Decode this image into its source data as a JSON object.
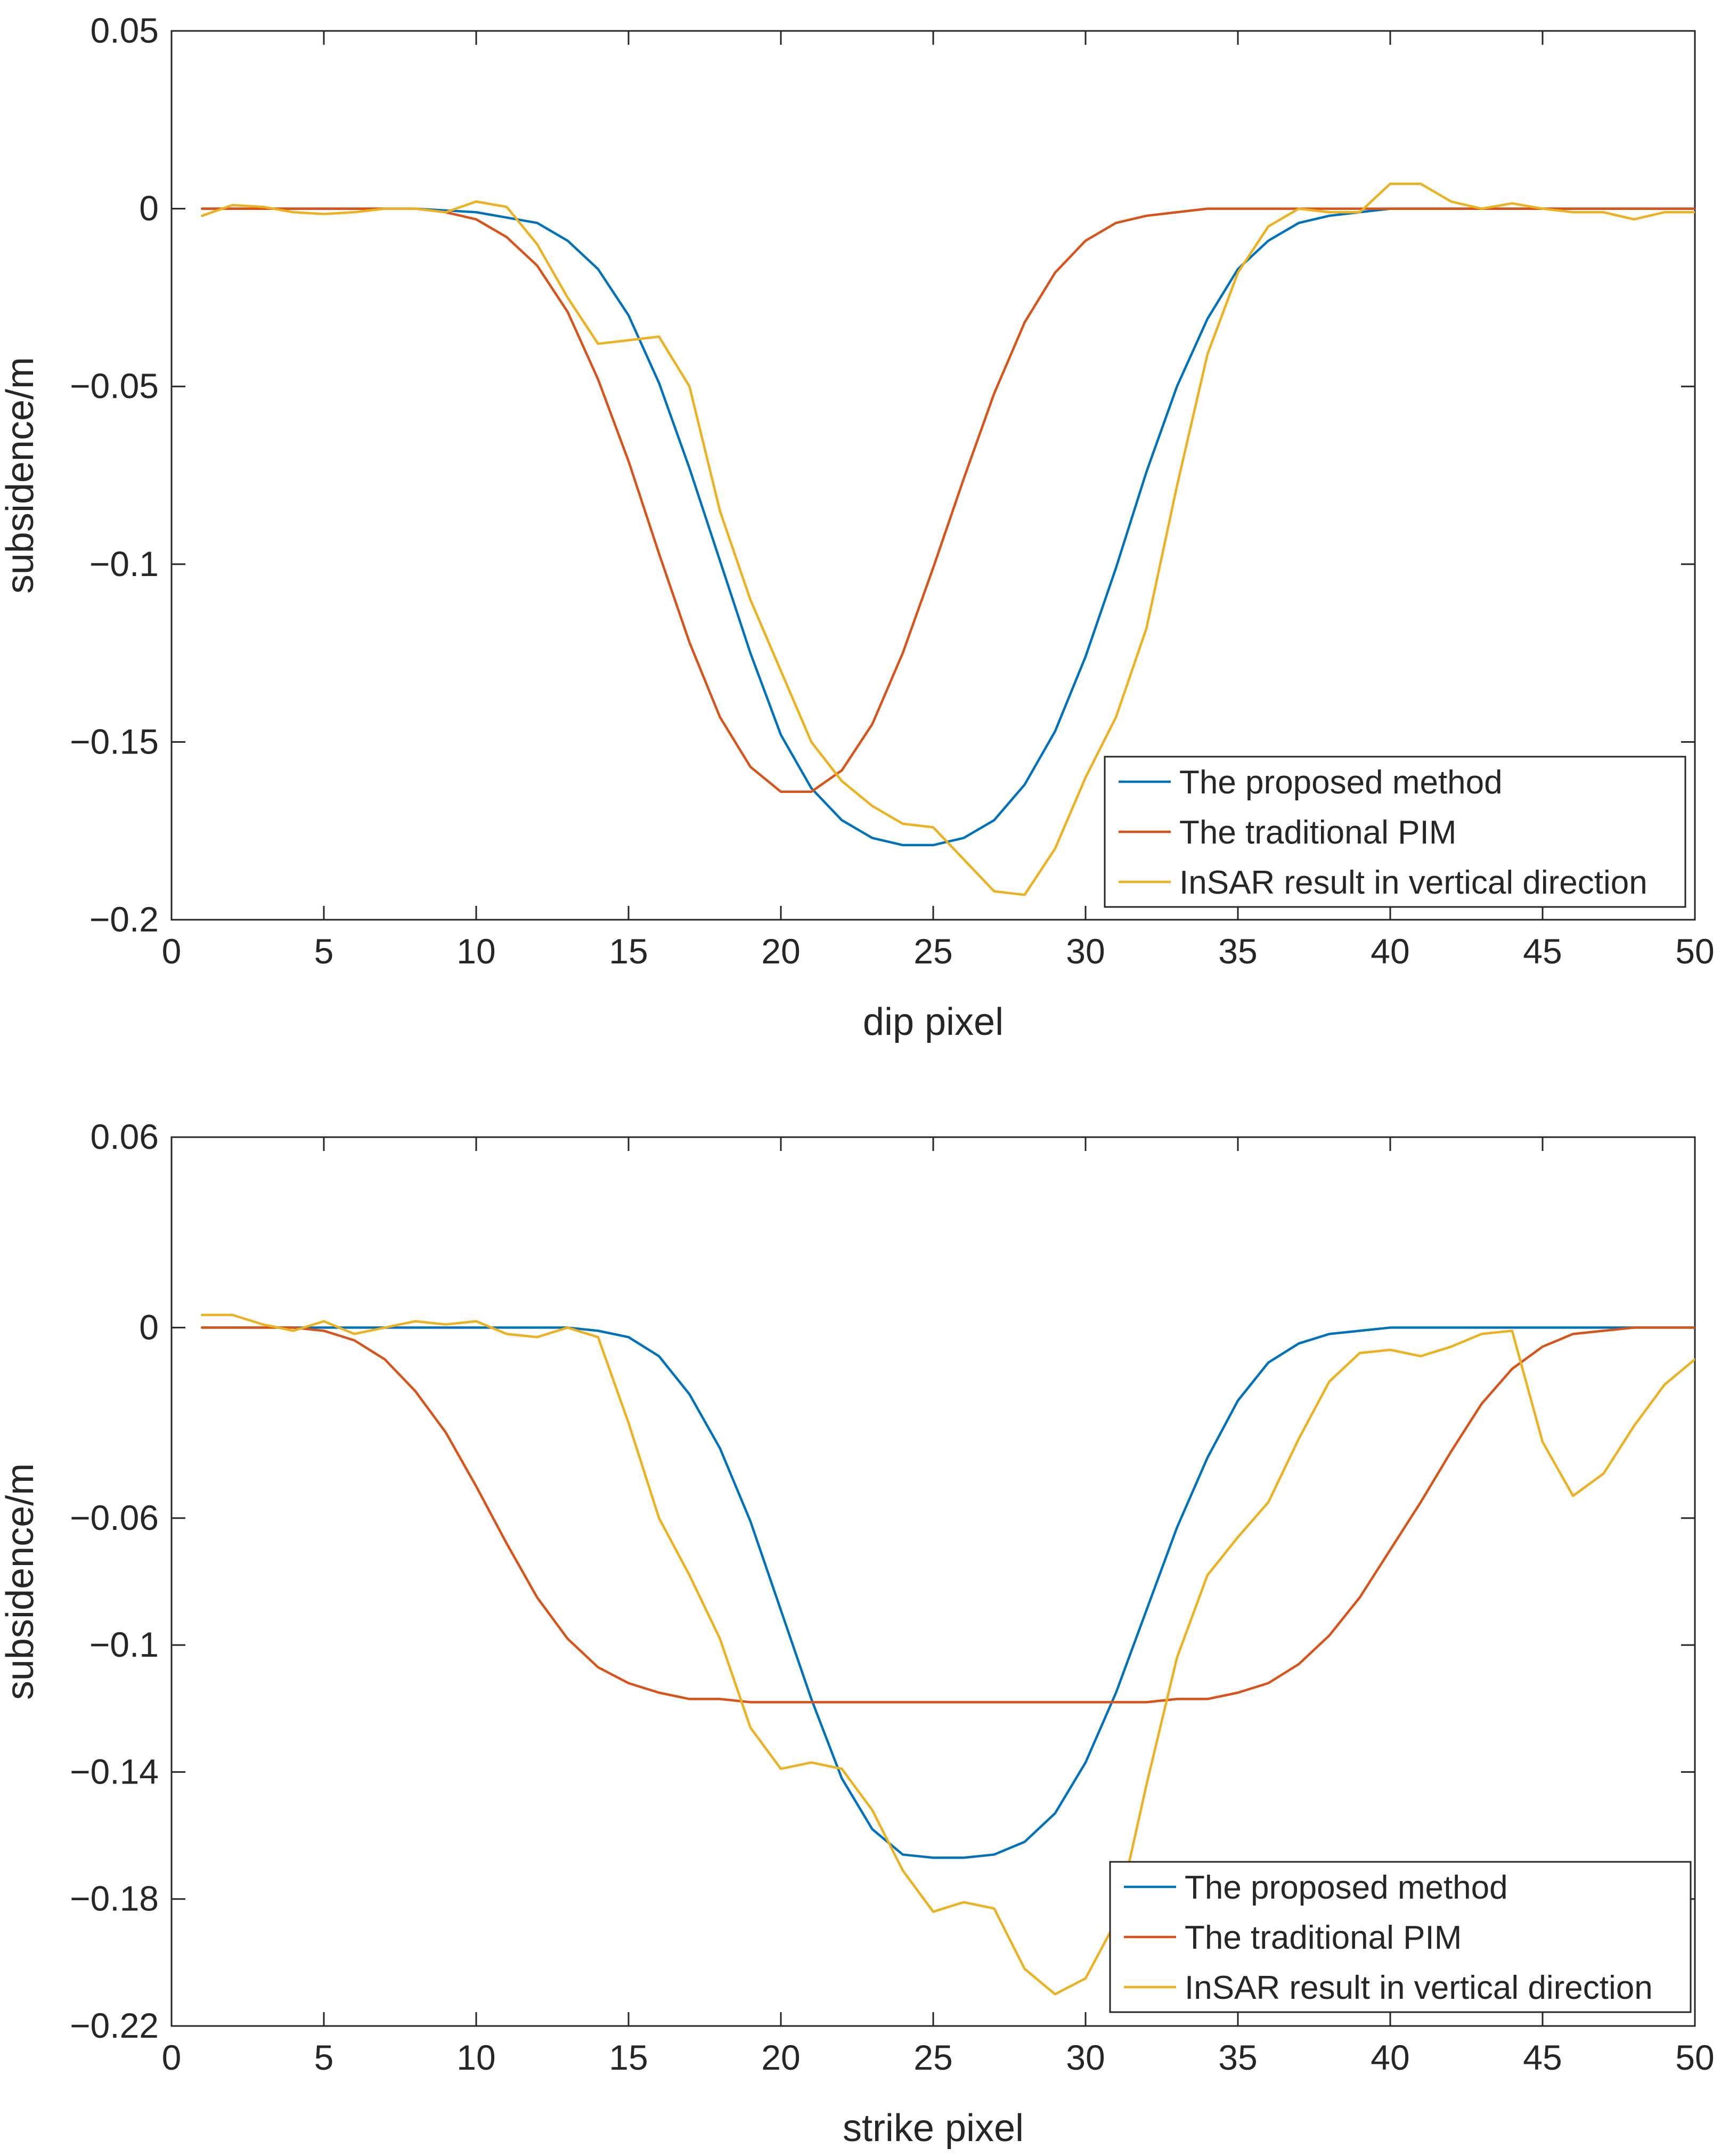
{
  "chart_data": [
    {
      "type": "line",
      "id": "dip",
      "title": "",
      "xlabel": "dip pixel",
      "ylabel": "subsidence/m",
      "xlim": [
        0,
        50
      ],
      "ylim": [
        -0.2,
        0.05
      ],
      "xticks": [
        0,
        5,
        10,
        15,
        20,
        25,
        30,
        35,
        40,
        45,
        50
      ],
      "xtick_labels": [
        "0",
        "5",
        "10",
        "15",
        "20",
        "25",
        "30",
        "35",
        "40",
        "45",
        "50"
      ],
      "yticks": [
        0.05,
        0,
        -0.05,
        -0.1,
        -0.15,
        -0.2
      ],
      "ytick_labels": [
        "0.05",
        "0",
        "−0.05",
        "−0.1",
        "−0.15",
        "−0.2"
      ],
      "grid": false,
      "legend_position": "bottom-right",
      "x": [
        1,
        2,
        3,
        4,
        5,
        6,
        7,
        8,
        9,
        10,
        11,
        12,
        13,
        14,
        15,
        16,
        17,
        18,
        19,
        20,
        21,
        22,
        23,
        24,
        25,
        26,
        27,
        28,
        29,
        30,
        31,
        32,
        33,
        34,
        35,
        36,
        37,
        38,
        39,
        40,
        41,
        42,
        43,
        44,
        45,
        46,
        47,
        48,
        49,
        50
      ],
      "series": [
        {
          "name": "The proposed method",
          "color": "#0072BD",
          "values": [
            0,
            0,
            0,
            0,
            0,
            0,
            0,
            0,
            -0.0005,
            -0.001,
            -0.0025,
            -0.004,
            -0.009,
            -0.017,
            -0.03,
            -0.049,
            -0.073,
            -0.099,
            -0.125,
            -0.148,
            -0.163,
            -0.172,
            -0.177,
            -0.179,
            -0.179,
            -0.177,
            -0.172,
            -0.162,
            -0.147,
            -0.126,
            -0.101,
            -0.074,
            -0.05,
            -0.031,
            -0.017,
            -0.009,
            -0.004,
            -0.002,
            -0.001,
            0,
            0,
            0,
            0,
            0,
            0,
            0,
            0,
            0,
            0,
            0
          ]
        },
        {
          "name": "The traditional PIM",
          "color": "#D95319",
          "values": [
            0,
            0,
            0,
            0,
            0,
            0,
            0,
            0,
            -0.001,
            -0.003,
            -0.008,
            -0.016,
            -0.029,
            -0.048,
            -0.071,
            -0.097,
            -0.122,
            -0.143,
            -0.157,
            -0.164,
            -0.164,
            -0.158,
            -0.145,
            -0.125,
            -0.101,
            -0.076,
            -0.052,
            -0.032,
            -0.018,
            -0.009,
            -0.004,
            -0.002,
            -0.001,
            0,
            0,
            0,
            0,
            0,
            0,
            0,
            0,
            0,
            0,
            0,
            0,
            0,
            0,
            0,
            0,
            0
          ]
        },
        {
          "name": "InSAR result in vertical direction",
          "color": "#EDB120",
          "values": [
            -0.002,
            0.001,
            0.0005,
            -0.001,
            -0.0015,
            -0.001,
            0,
            0,
            -0.001,
            0.002,
            0.0005,
            -0.01,
            -0.025,
            -0.038,
            -0.037,
            -0.036,
            -0.05,
            -0.085,
            -0.11,
            -0.13,
            -0.15,
            -0.161,
            -0.168,
            -0.173,
            -0.174,
            -0.183,
            -0.192,
            -0.193,
            -0.18,
            -0.16,
            -0.143,
            -0.118,
            -0.078,
            -0.041,
            -0.018,
            -0.005,
            0,
            -0.001,
            -0.001,
            0.007,
            0.007,
            0.002,
            0,
            0.0015,
            0,
            -0.001,
            -0.001,
            -0.003,
            -0.001,
            -0.001
          ]
        }
      ]
    },
    {
      "type": "line",
      "id": "strike",
      "title": "",
      "xlabel": "strike pixel",
      "ylabel": "subsidence/m",
      "xlim": [
        0,
        50
      ],
      "ylim": [
        -0.22,
        0.06
      ],
      "xticks": [
        0,
        5,
        10,
        15,
        20,
        25,
        30,
        35,
        40,
        45,
        50
      ],
      "xtick_labels": [
        "0",
        "5",
        "10",
        "15",
        "20",
        "25",
        "30",
        "35",
        "40",
        "45",
        "50"
      ],
      "yticks": [
        0.06,
        0,
        -0.06,
        -0.1,
        -0.14,
        -0.18,
        -0.22
      ],
      "ytick_labels": [
        "0.06",
        "0",
        "−0.06",
        "−0.1",
        "−0.14",
        "−0.18",
        "−0.22"
      ],
      "grid": false,
      "legend_position": "bottom-right",
      "x": [
        1,
        2,
        3,
        4,
        5,
        6,
        7,
        8,
        9,
        10,
        11,
        12,
        13,
        14,
        15,
        16,
        17,
        18,
        19,
        20,
        21,
        22,
        23,
        24,
        25,
        26,
        27,
        28,
        29,
        30,
        31,
        32,
        33,
        34,
        35,
        36,
        37,
        38,
        39,
        40,
        41,
        42,
        43,
        44,
        45,
        46,
        47,
        48,
        49,
        50
      ],
      "series": [
        {
          "name": "The proposed method",
          "color": "#0072BD",
          "values": [
            0,
            0,
            0,
            0,
            0,
            0,
            0,
            0,
            0,
            0,
            0,
            0,
            0,
            -0.001,
            -0.003,
            -0.009,
            -0.021,
            -0.038,
            -0.061,
            -0.089,
            -0.117,
            -0.142,
            -0.158,
            -0.166,
            -0.167,
            -0.167,
            -0.166,
            -0.162,
            -0.153,
            -0.137,
            -0.115,
            -0.089,
            -0.063,
            -0.041,
            -0.023,
            -0.011,
            -0.005,
            -0.002,
            -0.001,
            0,
            0,
            0,
            0,
            0,
            0,
            0,
            0,
            0,
            0,
            0
          ]
        },
        {
          "name": "The traditional PIM",
          "color": "#D95319",
          "values": [
            0,
            0,
            0,
            0,
            -0.001,
            -0.004,
            -0.01,
            -0.02,
            -0.033,
            -0.05,
            -0.068,
            -0.085,
            -0.098,
            -0.107,
            -0.112,
            -0.115,
            -0.117,
            -0.117,
            -0.118,
            -0.118,
            -0.118,
            -0.118,
            -0.118,
            -0.118,
            -0.118,
            -0.118,
            -0.118,
            -0.118,
            -0.118,
            -0.118,
            -0.118,
            -0.118,
            -0.117,
            -0.117,
            -0.115,
            -0.112,
            -0.106,
            -0.097,
            -0.085,
            -0.07,
            -0.055,
            -0.039,
            -0.024,
            -0.013,
            -0.006,
            -0.002,
            -0.001,
            0,
            0,
            0
          ]
        },
        {
          "name": "InSAR result in vertical direction",
          "color": "#EDB120",
          "values": [
            0.004,
            0.004,
            0.001,
            -0.001,
            0.002,
            -0.002,
            0,
            0.002,
            0.001,
            0.002,
            -0.002,
            -0.003,
            0,
            -0.003,
            -0.03,
            -0.06,
            -0.078,
            -0.098,
            -0.126,
            -0.139,
            -0.137,
            -0.139,
            -0.152,
            -0.171,
            -0.184,
            -0.181,
            -0.183,
            -0.202,
            -0.21,
            -0.205,
            -0.187,
            -0.144,
            -0.104,
            -0.078,
            -0.066,
            -0.055,
            -0.035,
            -0.017,
            -0.008,
            -0.007,
            -0.009,
            -0.006,
            -0.002,
            -0.001,
            -0.036,
            -0.053,
            -0.046,
            -0.031,
            -0.018,
            -0.01
          ]
        }
      ]
    }
  ]
}
